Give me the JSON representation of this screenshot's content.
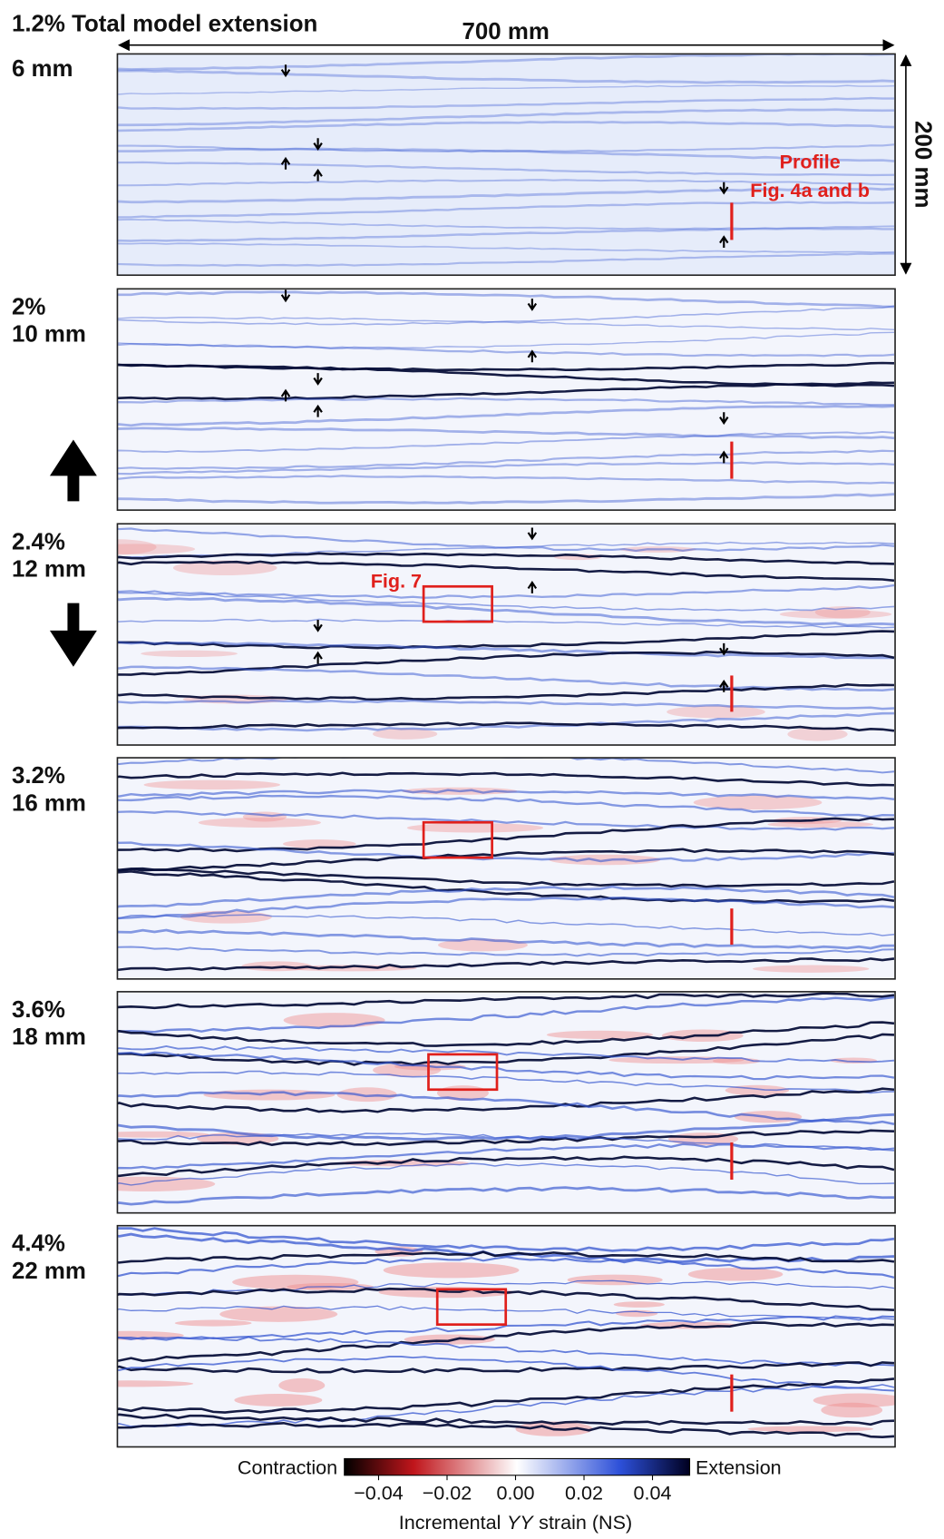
{
  "header": {
    "title": "1.2% Total model extension",
    "width_label": "700 mm",
    "height_label": "200 mm"
  },
  "panels": [
    {
      "labels": [
        "6 mm"
      ]
    },
    {
      "labels": [
        "2%",
        "10 mm"
      ]
    },
    {
      "labels": [
        "2.4%",
        "12 mm"
      ]
    },
    {
      "labels": [
        "3.2%",
        "16 mm"
      ]
    },
    {
      "labels": [
        "3.6%",
        "18 mm"
      ]
    },
    {
      "labels": [
        "4.4%",
        "22 mm"
      ]
    }
  ],
  "annotations": {
    "profile": [
      "Profile",
      "Fig. 4a and b"
    ],
    "fig7": "Fig. 7"
  },
  "colorbar": {
    "left_label": "Contraction",
    "right_label": "Extension",
    "ticks": [
      "−0.04",
      "−0.02",
      "0.00",
      "0.02",
      "0.04"
    ],
    "axis_label": [
      "Incremental",
      "YY",
      "strain (NS)"
    ]
  }
}
